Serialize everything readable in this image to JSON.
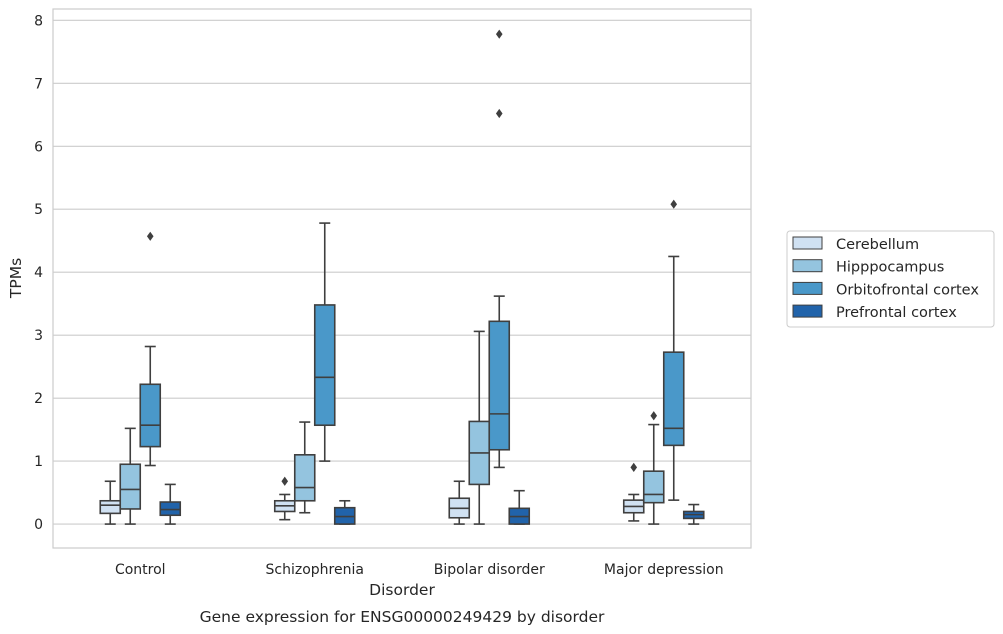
{
  "chart_data": {
    "type": "box",
    "title": "",
    "caption": "Gene expression for ENSG00000249429 by disorder",
    "xlabel": "Disorder",
    "ylabel": "TPMs",
    "ylim": [
      -0.38,
      8.18
    ],
    "yticks": [
      "0",
      "1",
      "2",
      "3",
      "4",
      "5",
      "6",
      "7",
      "8"
    ],
    "grid": true,
    "legend_position": "right",
    "categories": [
      "Control",
      "Schizophrenia",
      "Bipolar disorder",
      "Major depression"
    ],
    "series": [
      {
        "name": "Cerebellum",
        "color": "#d0e1f2",
        "boxes": [
          {
            "whisker_low": 0.0,
            "q1": 0.17,
            "median": 0.3,
            "q3": 0.37,
            "whisker_high": 0.68,
            "outliers": []
          },
          {
            "whisker_low": 0.07,
            "q1": 0.2,
            "median": 0.29,
            "q3": 0.37,
            "whisker_high": 0.47,
            "outliers": [
              0.68
            ]
          },
          {
            "whisker_low": 0.0,
            "q1": 0.1,
            "median": 0.25,
            "q3": 0.41,
            "whisker_high": 0.68,
            "outliers": []
          },
          {
            "whisker_low": 0.05,
            "q1": 0.18,
            "median": 0.28,
            "q3": 0.38,
            "whisker_high": 0.47,
            "outliers": [
              0.9
            ]
          }
        ]
      },
      {
        "name": "Hipppocampus",
        "color": "#94c4df",
        "boxes": [
          {
            "whisker_low": 0.0,
            "q1": 0.24,
            "median": 0.55,
            "q3": 0.95,
            "whisker_high": 1.52,
            "outliers": []
          },
          {
            "whisker_low": 0.18,
            "q1": 0.37,
            "median": 0.58,
            "q3": 1.1,
            "whisker_high": 1.62,
            "outliers": []
          },
          {
            "whisker_low": 0.0,
            "q1": 0.63,
            "median": 1.13,
            "q3": 1.63,
            "whisker_high": 3.06,
            "outliers": []
          },
          {
            "whisker_low": 0.0,
            "q1": 0.34,
            "median": 0.47,
            "q3": 0.84,
            "whisker_high": 1.58,
            "outliers": [
              1.72
            ]
          }
        ]
      },
      {
        "name": "Orbitofrontal cortex",
        "color": "#4a98c9",
        "boxes": [
          {
            "whisker_low": 0.93,
            "q1": 1.23,
            "median": 1.57,
            "q3": 2.22,
            "whisker_high": 2.82,
            "outliers": [
              4.57
            ]
          },
          {
            "whisker_low": 1.0,
            "q1": 1.57,
            "median": 2.33,
            "q3": 3.48,
            "whisker_high": 4.78,
            "outliers": []
          },
          {
            "whisker_low": 0.9,
            "q1": 1.18,
            "median": 1.75,
            "q3": 3.22,
            "whisker_high": 3.62,
            "outliers": [
              6.52,
              7.78
            ]
          },
          {
            "whisker_low": 0.38,
            "q1": 1.25,
            "median": 1.52,
            "q3": 2.73,
            "whisker_high": 4.25,
            "outliers": [
              5.08
            ]
          }
        ]
      },
      {
        "name": "Prefrontal cortex",
        "color": "#2163aa",
        "boxes": [
          {
            "whisker_low": 0.0,
            "q1": 0.14,
            "median": 0.23,
            "q3": 0.35,
            "whisker_high": 0.63,
            "outliers": []
          },
          {
            "whisker_low": 0.0,
            "q1": 0.0,
            "median": 0.12,
            "q3": 0.26,
            "whisker_high": 0.37,
            "outliers": []
          },
          {
            "whisker_low": 0.0,
            "q1": 0.0,
            "median": 0.12,
            "q3": 0.25,
            "whisker_high": 0.53,
            "outliers": []
          },
          {
            "whisker_low": 0.0,
            "q1": 0.09,
            "median": 0.15,
            "q3": 0.2,
            "whisker_high": 0.31,
            "outliers": []
          }
        ]
      }
    ]
  }
}
